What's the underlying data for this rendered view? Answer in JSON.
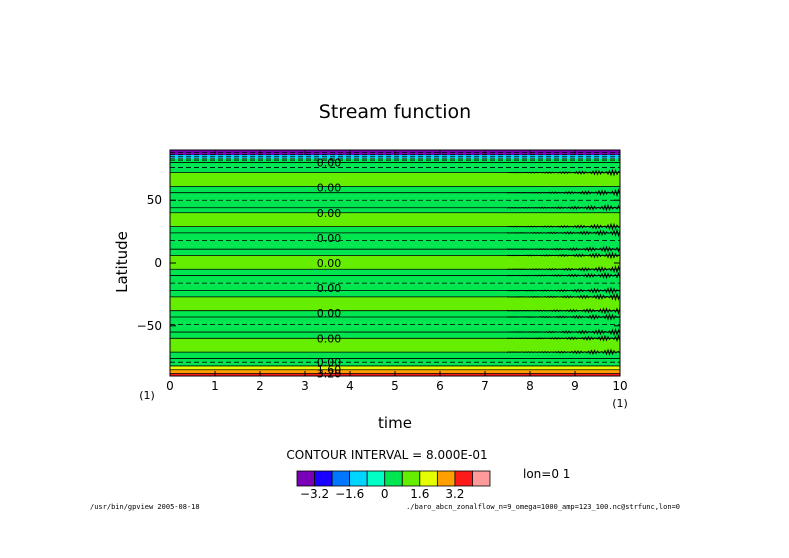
{
  "chart_data": {
    "type": "heatmap",
    "title": "Stream function",
    "xlabel": "time",
    "ylabel": "Latitude",
    "xlim": [
      0,
      10
    ],
    "ylim": [
      -90,
      90
    ],
    "x_ticks": [
      "0",
      "1",
      "2",
      "3",
      "4",
      "5",
      "6",
      "7",
      "8",
      "9",
      "10"
    ],
    "y_ticks": [
      50,
      0,
      -50
    ],
    "y_tick_labels": [
      "50",
      "0",
      "−50"
    ],
    "x_index_left": "(1)",
    "x_index_right": "(1)",
    "contour_interval_text": "CONTOUR INTERVAL = 8.000E-01",
    "slice_text": "lon=0  1",
    "colorbar": {
      "levels": [
        -3.2,
        -2.4,
        -1.6,
        -0.8,
        0,
        0.8,
        1.6,
        2.4,
        3.2
      ],
      "tick_labels": [
        "−3.2",
        "−1.6",
        "0",
        "1.6",
        "3.2"
      ],
      "tick_values": [
        -3.2,
        -1.6,
        0,
        1.6,
        3.2
      ],
      "colors": [
        "#7a00b8",
        "#1a00ff",
        "#0077ff",
        "#00d5ff",
        "#00ffc4",
        "#00e650",
        "#66ee00",
        "#e6ff00",
        "#ffa000",
        "#ff1a1a",
        "#ff9a9a"
      ]
    },
    "bands": [
      {
        "lat": [
          86,
          90
        ],
        "value": -3.5
      },
      {
        "lat": [
          83,
          86
        ],
        "value": -1.5
      },
      {
        "lat": [
          80,
          83
        ],
        "value": 0.3
      },
      {
        "lat": [
          72,
          80
        ],
        "value": 0.6
      },
      {
        "lat": [
          61,
          72
        ],
        "value": 1.0
      },
      {
        "lat": [
          56,
          61
        ],
        "value": 0.6
      },
      {
        "lat": [
          44,
          56
        ],
        "value": 0.2
      },
      {
        "lat": [
          40,
          44
        ],
        "value": 0.6
      },
      {
        "lat": [
          29,
          40
        ],
        "value": 1.0
      },
      {
        "lat": [
          24,
          29
        ],
        "value": 0.6
      },
      {
        "lat": [
          11,
          24
        ],
        "value": 0.2
      },
      {
        "lat": [
          6,
          11
        ],
        "value": 0.6
      },
      {
        "lat": [
          -5,
          6
        ],
        "value": 1.0
      },
      {
        "lat": [
          -10,
          -5
        ],
        "value": 0.6
      },
      {
        "lat": [
          -22,
          -10
        ],
        "value": 0.2
      },
      {
        "lat": [
          -27,
          -22
        ],
        "value": 0.6
      },
      {
        "lat": [
          -38,
          -27
        ],
        "value": 1.0
      },
      {
        "lat": [
          -43,
          -38
        ],
        "value": 0.6
      },
      {
        "lat": [
          -55,
          -43
        ],
        "value": 0.2
      },
      {
        "lat": [
          -60,
          -55
        ],
        "value": 0.6
      },
      {
        "lat": [
          -71,
          -60
        ],
        "value": 1.0
      },
      {
        "lat": [
          -76,
          -71
        ],
        "value": 0.6
      },
      {
        "lat": [
          -82,
          -76
        ],
        "value": 0.3
      },
      {
        "lat": [
          -85,
          -82
        ],
        "value": 1.8
      },
      {
        "lat": [
          -88,
          -85
        ],
        "value": 2.6
      },
      {
        "lat": [
          -90,
          -88
        ],
        "value": 3.4
      }
    ],
    "solid_contour_lats": [
      80,
      72,
      61,
      56,
      44,
      40,
      29,
      24,
      11,
      6,
      -5,
      -10,
      -22,
      -27,
      -38,
      -43,
      -55,
      -60,
      -71,
      -76,
      -82,
      -85,
      -88
    ],
    "dashed_contour_lats": [
      88,
      86.5,
      85,
      83.5,
      82,
      76,
      50,
      18,
      -16,
      -49,
      -79
    ],
    "contour_labels": [
      {
        "text": "0.00",
        "lat": 80
      },
      {
        "text": "0.00",
        "lat": 60
      },
      {
        "text": "0.00",
        "lat": 40
      },
      {
        "text": "0.00",
        "lat": 20
      },
      {
        "text": "0.00",
        "lat": 0
      },
      {
        "text": "0.00",
        "lat": -20
      },
      {
        "text": "0.00",
        "lat": -40
      },
      {
        "text": "0.00",
        "lat": -60
      },
      {
        "text": "0.00",
        "lat": -79
      },
      {
        "text": "1.60",
        "lat": -85
      },
      {
        "text": "3.20",
        "lat": -88
      }
    ],
    "wave_disturbance_lats": [
      72,
      56,
      44,
      29,
      24,
      11,
      6,
      -5,
      -10,
      -22,
      -27,
      -38,
      -43,
      -55,
      -60,
      -71
    ],
    "wave_onset_time": 7.5
  },
  "footer": {
    "left": "/usr/bin/gpview  2005-08-18",
    "right": "./baro_abcn_zonalflow_n=9_omega=1000_amp=123_100.nc@strfunc,lon=0"
  }
}
